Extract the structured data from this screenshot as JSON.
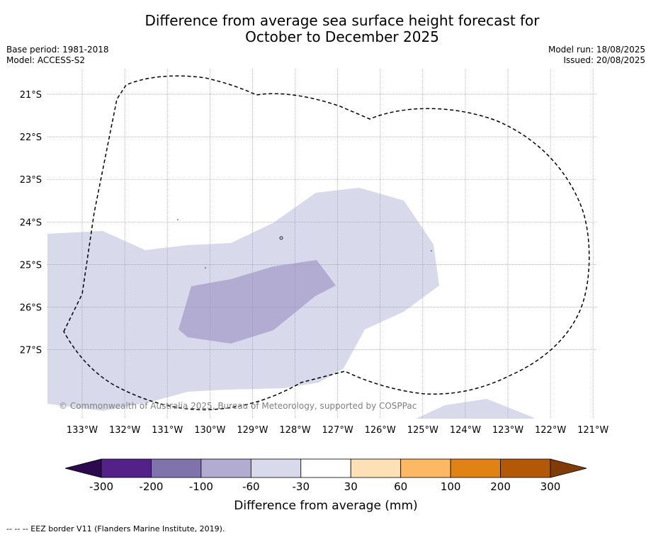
{
  "title": {
    "line1": "Difference from average sea surface height forecast for",
    "line2": "October to December 2025"
  },
  "meta": {
    "base_period": "Base period: 1981-2018",
    "model": "Model: ACCESS-S2",
    "model_run": "Model run: 18/08/2025",
    "issued": "Issued: 20/08/2025"
  },
  "map": {
    "lon_labels": [
      "133°W",
      "132°W",
      "131°W",
      "130°W",
      "129°W",
      "128°W",
      "127°W",
      "126°W",
      "125°W",
      "124°W",
      "123°W",
      "122°W",
      "121°W"
    ],
    "lat_labels": [
      "21°S",
      "22°S",
      "23°S",
      "24°S",
      "25°S",
      "26°S",
      "27°S"
    ],
    "copyright": "© Commonwealth of Australia 2025, Bureau of Meteorology, supported by COSPPac"
  },
  "colorbar": {
    "title": "Difference from average (mm)",
    "tick_labels": [
      "-300",
      "-200",
      "-100",
      "-60",
      "-30",
      "30",
      "60",
      "100",
      "200",
      "300"
    ],
    "colors": [
      "#2d0a4f",
      "#542188",
      "#8073ac",
      "#b2abd2",
      "#d8daeb",
      "#ffffff",
      "#fee0b6",
      "#fdb863",
      "#e08214",
      "#b35806",
      "#7f3b08"
    ]
  },
  "footer": "--  --  -- EEZ border V11 (Flanders Marine Institute, 2019)."
}
